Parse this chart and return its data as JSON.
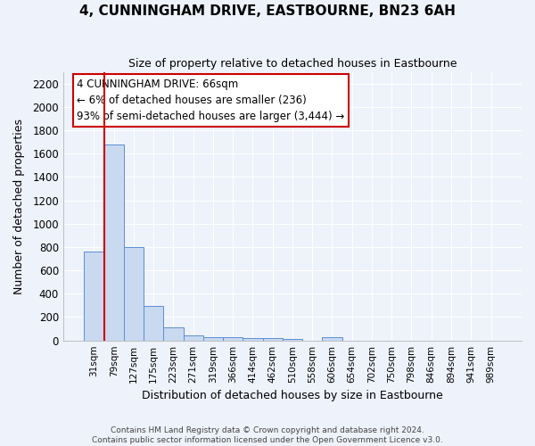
{
  "title": "4, CUNNINGHAM DRIVE, EASTBOURNE, BN23 6AH",
  "subtitle": "Size of property relative to detached houses in Eastbourne",
  "xlabel": "Distribution of detached houses by size in Eastbourne",
  "ylabel": "Number of detached properties",
  "footer_line1": "Contains HM Land Registry data © Crown copyright and database right 2024.",
  "footer_line2": "Contains public sector information licensed under the Open Government Licence v3.0.",
  "bins": [
    "31sqm",
    "79sqm",
    "127sqm",
    "175sqm",
    "223sqm",
    "271sqm",
    "319sqm",
    "366sqm",
    "414sqm",
    "462sqm",
    "510sqm",
    "558sqm",
    "606sqm",
    "654sqm",
    "702sqm",
    "750sqm",
    "798sqm",
    "846sqm",
    "894sqm",
    "941sqm",
    "989sqm"
  ],
  "values": [
    760,
    1680,
    800,
    295,
    110,
    40,
    30,
    25,
    20,
    20,
    15,
    0,
    25,
    0,
    0,
    0,
    0,
    0,
    0,
    0,
    0
  ],
  "bar_color": "#c9d9f0",
  "bar_edge_color": "#5b8fd4",
  "background_color": "#eef2fa",
  "grid_color": "#ffffff",
  "red_line_color": "#cc0000",
  "annotation_text": "4 CUNNINGHAM DRIVE: 66sqm\n← 6% of detached houses are smaller (236)\n93% of semi-detached houses are larger (3,444) →",
  "annotation_box_color": "#cc0000",
  "ylim": [
    0,
    2300
  ],
  "yticks": [
    0,
    200,
    400,
    600,
    800,
    1000,
    1200,
    1400,
    1600,
    1800,
    2000,
    2200
  ]
}
